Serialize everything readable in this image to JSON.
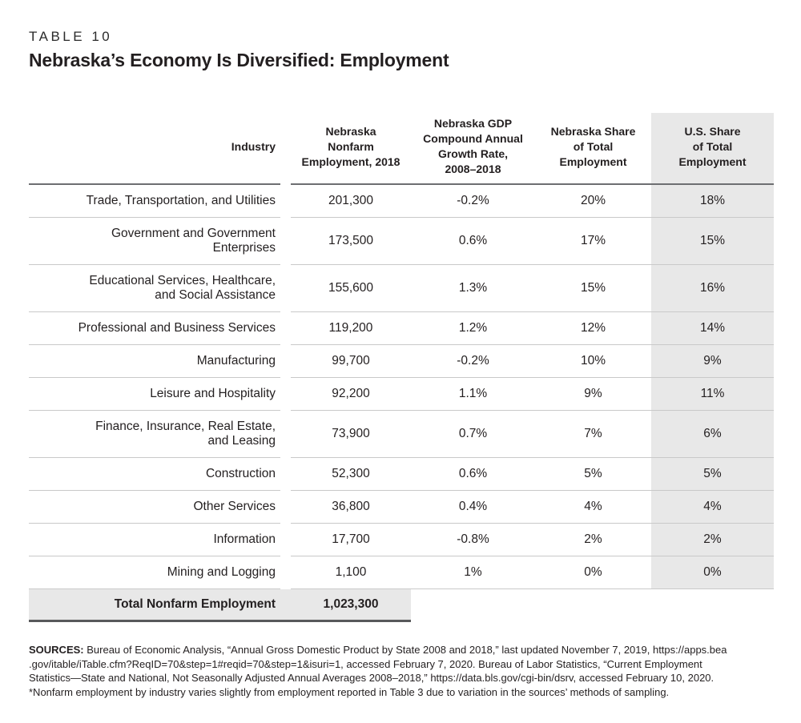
{
  "page": {
    "eyebrow": "TABLE 10",
    "title": "Nebraska’s Economy Is Diversified: Employment"
  },
  "table": {
    "columns": [
      {
        "text": "Industry"
      },
      {
        "text": "Nebraska\nNonfarm\nEmployment, 2018"
      },
      {
        "text": "Nebraska GDP\nCompound Annual\nGrowth Rate,\n2008–2018"
      },
      {
        "text": "Nebraska Share\nof Total\nEmployment"
      },
      {
        "text": "U.S. Share\nof Total\nEmployment"
      }
    ],
    "rows": [
      {
        "industry": "Trade, Transportation, and Utilities",
        "employment": "201,300",
        "growth": "-0.2%",
        "ne_share": "20%",
        "us_share": "18%"
      },
      {
        "industry": "Government and Government\nEnterprises",
        "employment": "173,500",
        "growth": "0.6%",
        "ne_share": "17%",
        "us_share": "15%"
      },
      {
        "industry": "Educational Services, Healthcare,\nand Social Assistance",
        "employment": "155,600",
        "growth": "1.3%",
        "ne_share": "15%",
        "us_share": "16%"
      },
      {
        "industry": "Professional and Business Services",
        "employment": "119,200",
        "growth": "1.2%",
        "ne_share": "12%",
        "us_share": "14%"
      },
      {
        "industry": "Manufacturing",
        "employment": "99,700",
        "growth": "-0.2%",
        "ne_share": "10%",
        "us_share": "9%"
      },
      {
        "industry": "Leisure and Hospitality",
        "employment": "92,200",
        "growth": "1.1%",
        "ne_share": "9%",
        "us_share": "11%"
      },
      {
        "industry": "Finance, Insurance, Real Estate,\nand Leasing",
        "employment": "73,900",
        "growth": "0.7%",
        "ne_share": "7%",
        "us_share": "6%"
      },
      {
        "industry": "Construction",
        "employment": "52,300",
        "growth": "0.6%",
        "ne_share": "5%",
        "us_share": "5%"
      },
      {
        "industry": "Other Services",
        "employment": "36,800",
        "growth": "0.4%",
        "ne_share": "4%",
        "us_share": "4%"
      },
      {
        "industry": "Information",
        "employment": "17,700",
        "growth": "-0.8%",
        "ne_share": "2%",
        "us_share": "2%"
      },
      {
        "industry": "Mining and Logging",
        "employment": "1,100",
        "growth": "1%",
        "ne_share": "0%",
        "us_share": "0%"
      }
    ],
    "total": {
      "label": "Total Nonfarm Employment",
      "value": "1,023,300"
    }
  },
  "footer": {
    "sources_label": "SOURCES:",
    "sources_text": " Bureau of Economic Analysis, “Annual Gross Domestic Product by State 2008 and 2018,” last updated November 7, 2019, https://apps.bea\n.gov/itable/iTable.cfm?ReqID=70&step=1#reqid=70&step=1&isuri=1, accessed February 7, 2020. Bureau of Labor Statistics, “Current Employment\nStatistics—State and National, Not Seasonally Adjusted Annual Averages 2008–2018,” https://data.bls.gov/cgi-bin/dsrv, accessed February 10, 2020.",
    "note": "*Nonfarm employment by industry varies slightly from employment reported in Table 3 due to variation in the sources’ methods of sampling."
  },
  "colors": {
    "shaded_column_bg": "#e8e8e8",
    "total_row_bg": "#e8e8e8",
    "header_rule": "#6d6e71",
    "row_rule": "#c9c9c9",
    "total_rule": "#58595b",
    "text": "#231f20"
  }
}
